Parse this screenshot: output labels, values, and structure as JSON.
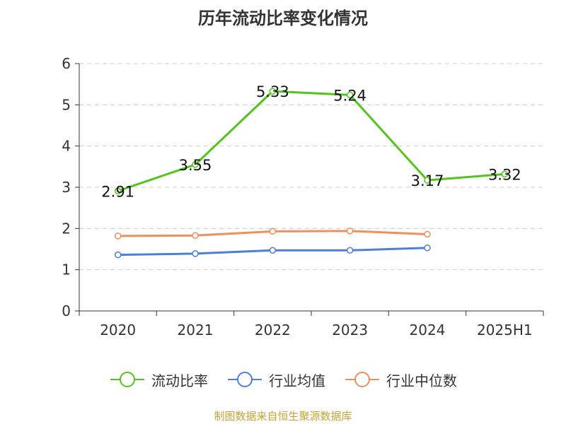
{
  "chart_data": {
    "type": "line",
    "title": "历年流动比率变化情况",
    "categories": [
      "2020",
      "2021",
      "2022",
      "2023",
      "2024",
      "2025H1"
    ],
    "ylim": [
      0,
      6
    ],
    "yticks": [
      0,
      1,
      2,
      3,
      4,
      5,
      6
    ],
    "grid": true,
    "legend_position": "bottom",
    "series": [
      {
        "name": "流动比率",
        "color": "#52c41a",
        "values": [
          2.91,
          3.55,
          5.33,
          5.24,
          3.17,
          3.32
        ],
        "show_labels": true
      },
      {
        "name": "行业均值",
        "color": "#4a7fdb",
        "values": [
          1.36,
          1.39,
          1.47,
          1.47,
          1.53,
          null
        ],
        "show_labels": false
      },
      {
        "name": "行业中位数",
        "color": "#f28e5b",
        "values": [
          1.82,
          1.83,
          1.93,
          1.94,
          1.86,
          null
        ],
        "show_labels": false
      }
    ]
  },
  "source_note": "制图数据来自恒生聚源数据库"
}
